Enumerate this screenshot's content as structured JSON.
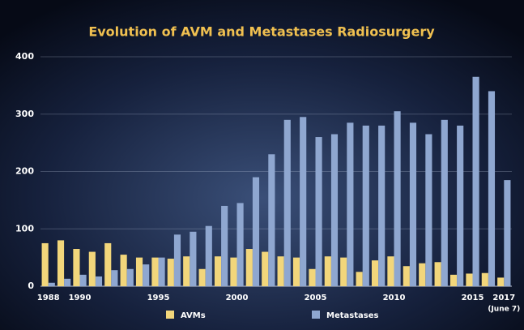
{
  "chart_data": {
    "type": "bar",
    "title": "Evolution of AVM and Metastases Radiosurgery",
    "categories": [
      "1988",
      null,
      "1990",
      null,
      null,
      null,
      null,
      "1995",
      null,
      null,
      null,
      null,
      "2000",
      null,
      null,
      null,
      null,
      "2005",
      null,
      null,
      null,
      null,
      "2010",
      null,
      null,
      null,
      null,
      "2015",
      null,
      "2017"
    ],
    "annotation": "(June 7)",
    "series": [
      {
        "name": "AVMs",
        "color": "#f2d67b",
        "values": [
          75,
          80,
          65,
          60,
          75,
          55,
          50,
          50,
          48,
          52,
          30,
          52,
          50,
          65,
          60,
          52,
          50,
          30,
          52,
          50,
          25,
          45,
          52,
          35,
          40,
          42,
          20,
          22,
          23,
          15
        ]
      },
      {
        "name": "Metastases",
        "color": "#8fa7d0",
        "values": [
          6,
          13,
          20,
          17,
          28,
          30,
          38,
          50,
          90,
          95,
          105,
          140,
          145,
          190,
          230,
          290,
          295,
          260,
          265,
          285,
          280,
          280,
          305,
          285,
          265,
          290,
          280,
          365,
          340,
          185
        ]
      }
    ],
    "ylim": [
      0,
      400
    ],
    "yticks": [
      0,
      100,
      200,
      300,
      400
    ],
    "grid": true,
    "legend": "bottom"
  }
}
